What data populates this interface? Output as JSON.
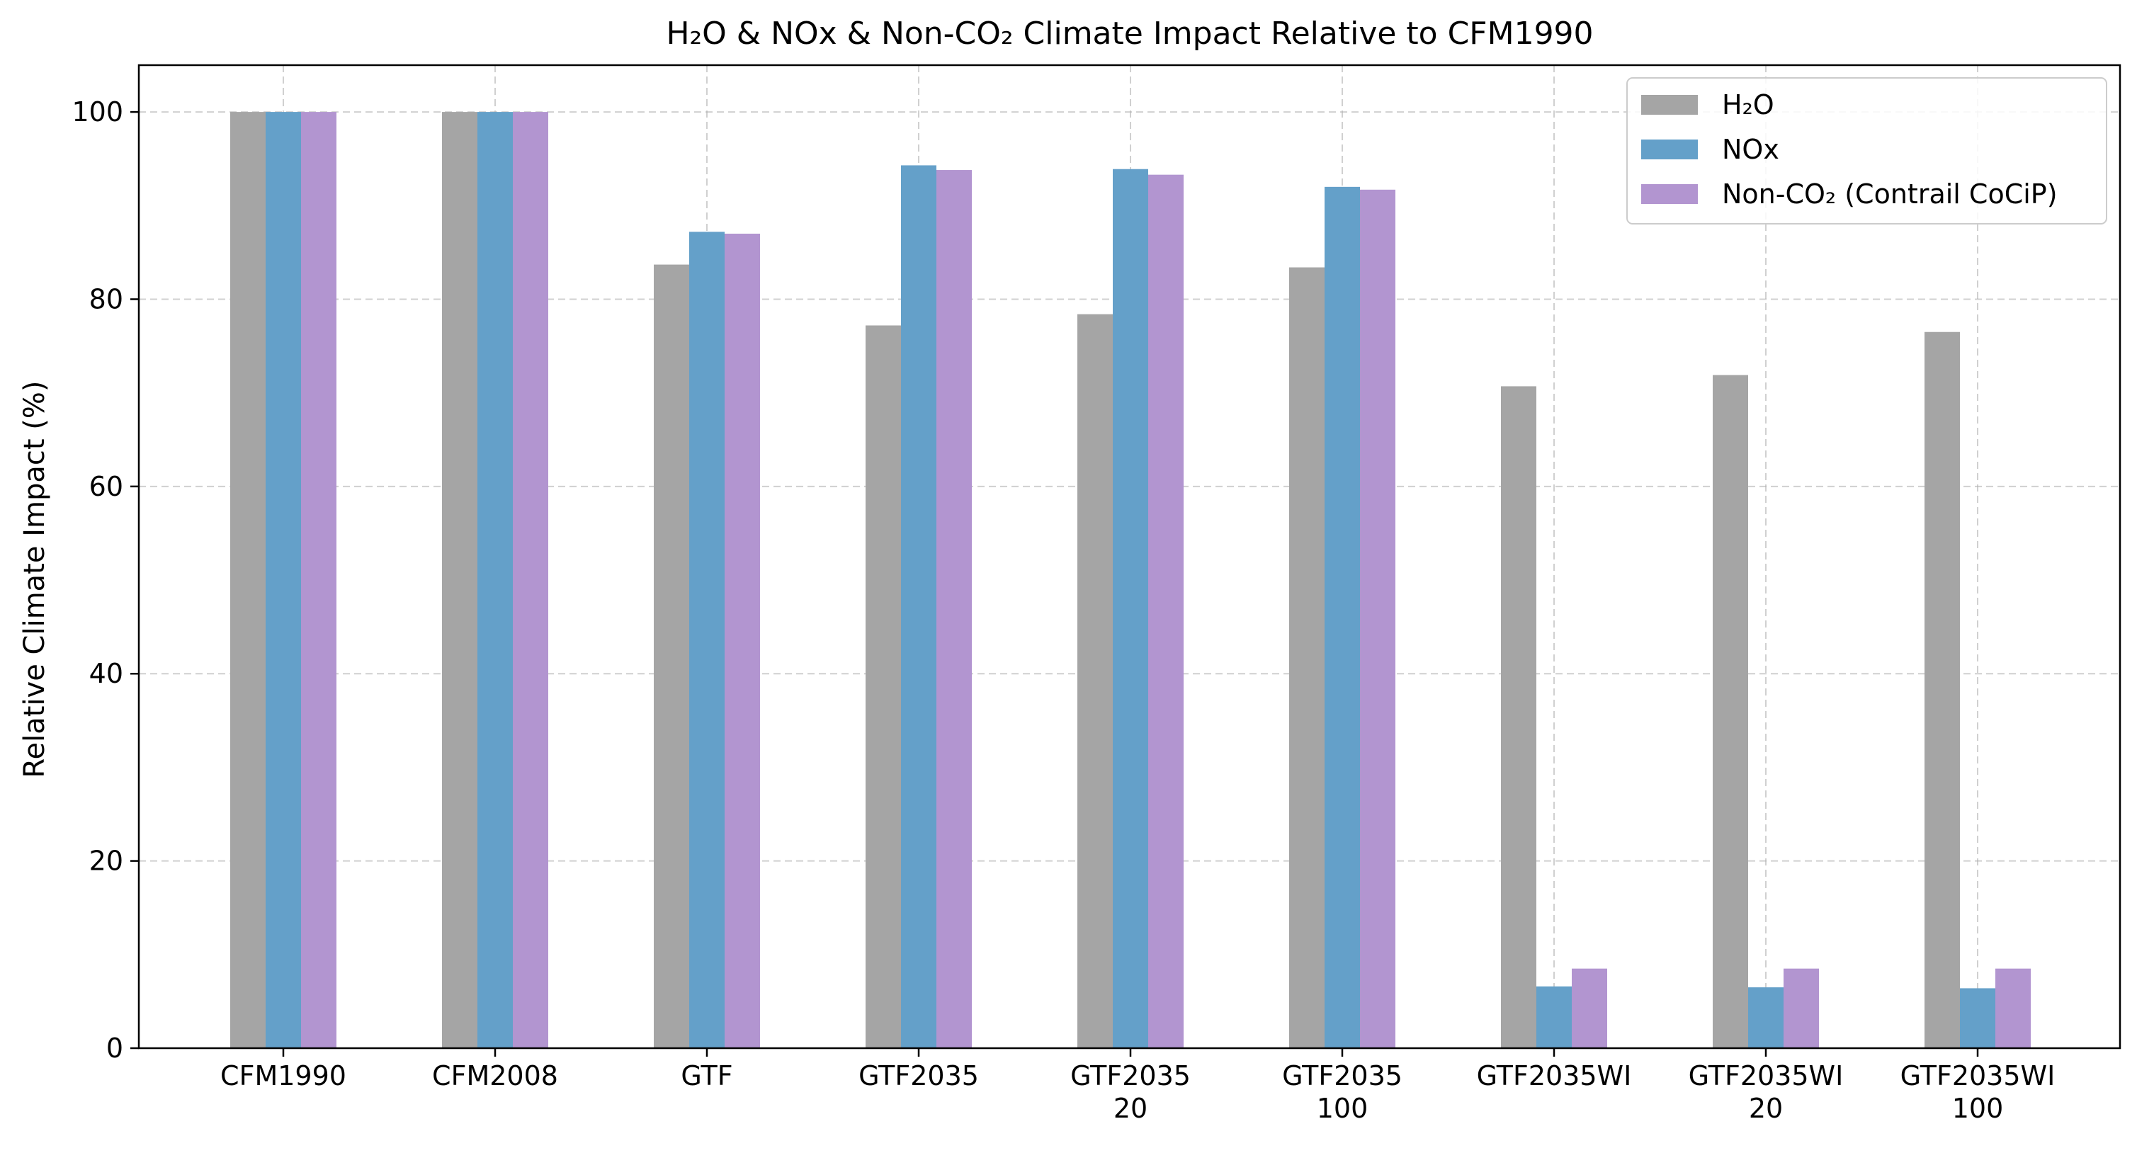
{
  "chart_data": {
    "type": "bar",
    "title": "H₂O & NOx & Non-CO₂ Climate Impact Relative to CFM1990",
    "xlabel": "",
    "ylabel": "Relative Climate Impact (%)",
    "ylim": [
      0,
      105
    ],
    "yticks": [
      0,
      20,
      40,
      60,
      80,
      100
    ],
    "ytick_labels": [
      "0",
      "20",
      "40",
      "60",
      "80",
      "100"
    ],
    "grid": true,
    "legend_position": "top-right",
    "categories": [
      [
        "CFM1990"
      ],
      [
        "CFM2008"
      ],
      [
        "GTF"
      ],
      [
        "GTF2035"
      ],
      [
        "GTF2035",
        "20"
      ],
      [
        "GTF2035",
        "100"
      ],
      [
        "GTF2035WI"
      ],
      [
        "GTF2035WI",
        "20"
      ],
      [
        "GTF2035WI",
        "100"
      ]
    ],
    "series": [
      {
        "name": "H₂O",
        "color": "#a5a5a5",
        "values": [
          100,
          100,
          83.7,
          77.2,
          78.4,
          83.4,
          70.7,
          71.9,
          76.5
        ]
      },
      {
        "name": "NOx",
        "color": "#64a0c9",
        "values": [
          100,
          100,
          87.2,
          94.3,
          93.9,
          92.0,
          6.6,
          6.5,
          6.4
        ]
      },
      {
        "name": "Non-CO₂ (Contrail CoCiP)",
        "color": "#b295d0",
        "values": [
          100,
          100,
          87.0,
          93.8,
          93.3,
          91.7,
          8.5,
          8.5,
          8.5
        ]
      }
    ]
  }
}
